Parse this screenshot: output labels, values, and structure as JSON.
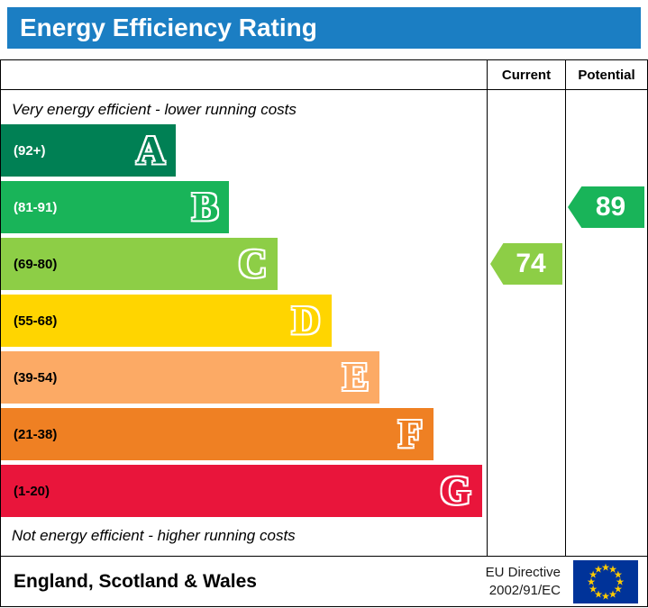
{
  "header": {
    "title": "Energy Efficiency Rating",
    "bg_color": "#1b7ec3",
    "text_color": "#ffffff"
  },
  "columns": {
    "current_label": "Current",
    "potential_label": "Potential"
  },
  "notes": {
    "top": "Very energy efficient - lower running costs",
    "bottom": "Not energy efficient - higher running costs"
  },
  "chart_data": {
    "type": "bar",
    "title": "Energy Efficiency Rating",
    "bands": [
      {
        "letter": "A",
        "range": "(92+)",
        "min": 92,
        "max": 100,
        "color": "#008054",
        "range_color": "#ffffff",
        "width_pct": 36
      },
      {
        "letter": "B",
        "range": "(81-91)",
        "min": 81,
        "max": 91,
        "color": "#19b459",
        "range_color": "#ffffff",
        "width_pct": 47
      },
      {
        "letter": "C",
        "range": "(69-80)",
        "min": 69,
        "max": 80,
        "color": "#8dce46",
        "range_color": "#000000",
        "width_pct": 57
      },
      {
        "letter": "D",
        "range": "(55-68)",
        "min": 55,
        "max": 68,
        "color": "#ffd500",
        "range_color": "#000000",
        "width_pct": 68
      },
      {
        "letter": "E",
        "range": "(39-54)",
        "min": 39,
        "max": 54,
        "color": "#fcaa65",
        "range_color": "#000000",
        "width_pct": 78
      },
      {
        "letter": "F",
        "range": "(21-38)",
        "min": 21,
        "max": 38,
        "color": "#ef8023",
        "range_color": "#000000",
        "width_pct": 89
      },
      {
        "letter": "G",
        "range": "(1-20)",
        "min": 1,
        "max": 20,
        "color": "#e9153b",
        "range_color": "#000000",
        "width_pct": 99
      }
    ],
    "current": {
      "value": "74",
      "band": "C",
      "color": "#8dce46"
    },
    "potential": {
      "value": "89",
      "band": "B",
      "color": "#19b459"
    }
  },
  "footer": {
    "region": "England, Scotland & Wales",
    "directive_line1": "EU Directive",
    "directive_line2": "2002/91/EC",
    "flag": {
      "bg": "#003399",
      "stars": "#ffcc00"
    }
  }
}
